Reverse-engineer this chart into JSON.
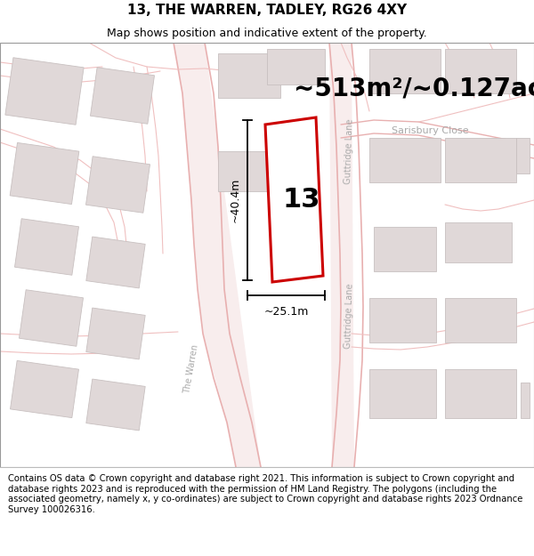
{
  "title": "13, THE WARREN, TADLEY, RG26 4XY",
  "subtitle": "Map shows position and indicative extent of the property.",
  "area_label": "~513m²/~0.127ac.",
  "property_number": "13",
  "dim_height": "~40.4m",
  "dim_width": "~25.1m",
  "footer": "Contains OS data © Crown copyright and database right 2021. This information is subject to Crown copyright and database rights 2023 and is reproduced with the permission of HM Land Registry. The polygons (including the associated geometry, namely x, y co-ordinates) are subject to Crown copyright and database rights 2023 Ordnance Survey 100026316.",
  "bg_color": "#f7f3f3",
  "map_bg": "#f7f3f3",
  "road_color": "#f0c0c0",
  "building_color": "#e0d8d8",
  "building_edge": "#c8c0c0",
  "property_fill": "#ffffff",
  "property_edge": "#cc0000",
  "title_fontsize": 11,
  "subtitle_fontsize": 9,
  "area_fontsize": 20,
  "number_fontsize": 22,
  "dim_fontsize": 9,
  "footer_fontsize": 7.2,
  "street_label_color": "#aaaaaa"
}
